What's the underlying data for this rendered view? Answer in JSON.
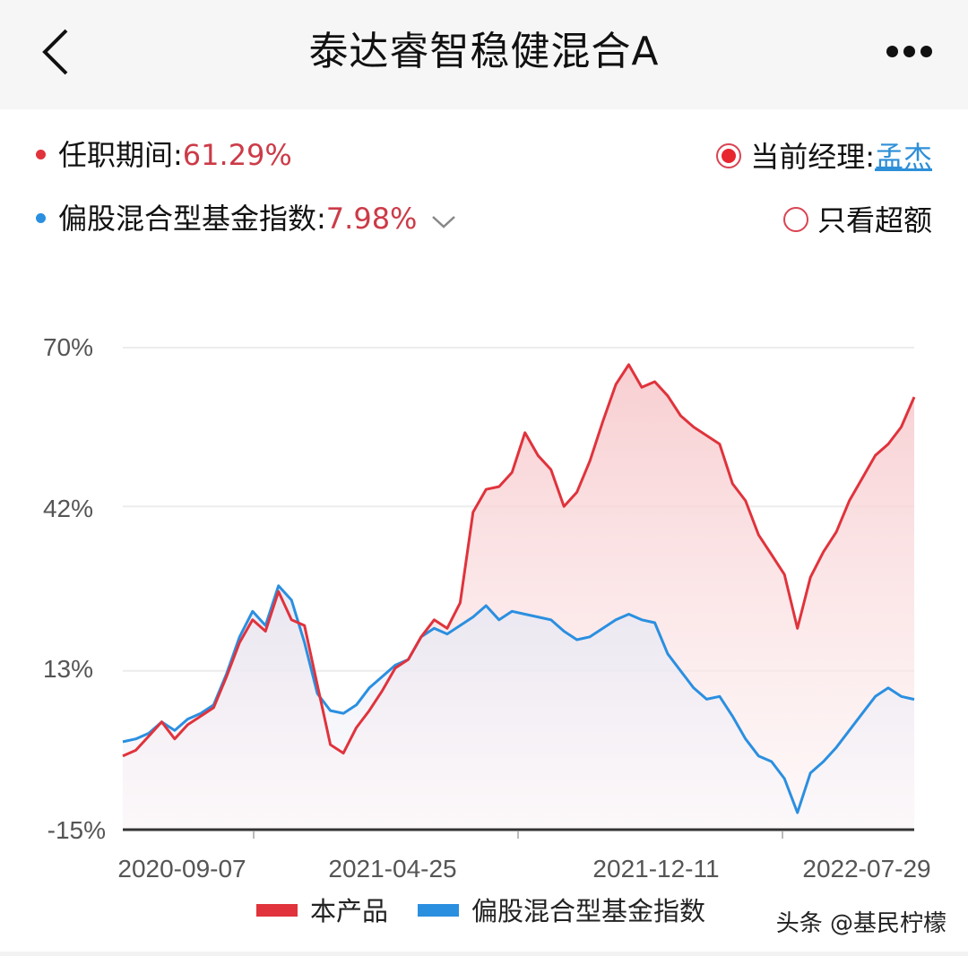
{
  "header": {
    "title": "泰达睿智稳健混合A",
    "back_icon": "chevron-left-icon",
    "more_icon": "more-horizontal-icon"
  },
  "summary": {
    "tenure": {
      "label": "任职期间:",
      "value": "61.29%",
      "dot_color": "#e0333c"
    },
    "benchmark": {
      "label": "偏股混合型基金指数:",
      "value": "7.98%",
      "dot_color": "#2b8fe0",
      "dropdown_icon": "chevron-down-icon"
    },
    "current_manager": {
      "label": "当前经理:",
      "name": "孟杰",
      "selected": true
    },
    "excess_only": {
      "label": "只看超额",
      "selected": false
    }
  },
  "watermark": "头条 @基民柠檬",
  "chart_data": {
    "type": "line",
    "title": "",
    "xlabel": "",
    "ylabel": "",
    "ylim": [
      -15,
      70
    ],
    "yticks": [
      "70%",
      "42%",
      "13%",
      "-15%"
    ],
    "ytick_values": [
      70,
      42,
      13,
      -15
    ],
    "xticks": [
      "2020-09-07",
      "2021-04-25",
      "2021-12-11",
      "2022-07-29"
    ],
    "grid": true,
    "legend_position": "bottom",
    "series": [
      {
        "name": "本产品",
        "color": "#e0333c",
        "fill": true,
        "values": [
          -2.0,
          -1.0,
          1.5,
          4.0,
          1.0,
          3.5,
          5.0,
          6.5,
          12.0,
          18.0,
          22.0,
          20.0,
          27.0,
          22.0,
          21.0,
          10.5,
          0.0,
          -1.5,
          3.0,
          6.0,
          9.5,
          13.5,
          15.0,
          19.0,
          22.0,
          20.5,
          25.0,
          41.0,
          45.0,
          45.5,
          48.0,
          55.0,
          51.0,
          48.5,
          42.0,
          44.5,
          50.0,
          57.0,
          63.5,
          67.0,
          63.0,
          64.0,
          61.5,
          58.0,
          56.0,
          54.5,
          53.0,
          46.0,
          43.0,
          37.0,
          33.5,
          30.0,
          20.5,
          29.5,
          34.0,
          37.5,
          43.0,
          47.0,
          51.0,
          53.0,
          56.0,
          61.3
        ]
      },
      {
        "name": "偏股混合型基金指数",
        "color": "#2b8fe0",
        "fill": true,
        "values": [
          0.5,
          1.0,
          2.0,
          4.0,
          2.5,
          4.5,
          5.5,
          7.0,
          12.5,
          19.0,
          23.5,
          21.0,
          28.0,
          25.5,
          18.0,
          9.0,
          6.0,
          5.5,
          7.0,
          10.0,
          12.0,
          14.0,
          15.0,
          19.0,
          20.5,
          19.5,
          21.0,
          22.5,
          24.5,
          22.0,
          23.5,
          23.0,
          22.5,
          22.0,
          20.0,
          18.5,
          19.0,
          20.5,
          22.0,
          23.0,
          22.0,
          21.5,
          16.0,
          13.0,
          10.0,
          8.0,
          8.5,
          5.0,
          1.0,
          -2.0,
          -3.0,
          -6.0,
          -12.0,
          -5.0,
          -3.0,
          -0.5,
          2.5,
          5.5,
          8.5,
          10.0,
          8.5,
          7.98
        ]
      }
    ]
  },
  "legend": [
    {
      "label": "本产品",
      "color": "#e0333c"
    },
    {
      "label": "偏股混合型基金指数",
      "color": "#2b8fe0"
    }
  ]
}
